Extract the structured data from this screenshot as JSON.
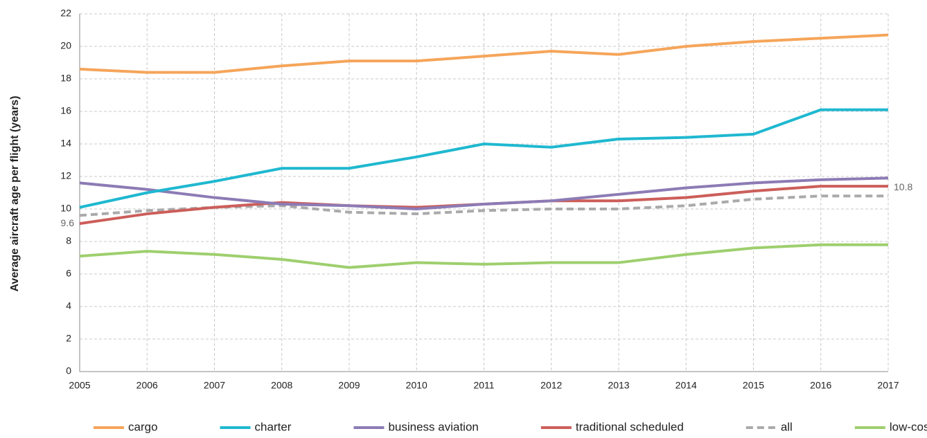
{
  "chart_data": {
    "type": "line",
    "y_label": "Average aircraft age per flight (years)",
    "categories": [
      "2005",
      "2006",
      "2007",
      "2008",
      "2009",
      "2010",
      "2011",
      "2012",
      "2013",
      "2014",
      "2015",
      "2016",
      "2017"
    ],
    "series": [
      {
        "name": "cargo",
        "color": "#f5a55a",
        "values": [
          18.6,
          18.4,
          18.4,
          18.8,
          19.1,
          19.1,
          19.4,
          19.7,
          19.5,
          20.0,
          20.3,
          20.5,
          20.7
        ]
      },
      {
        "name": "charter",
        "color": "#1fb8d0",
        "values": [
          10.1,
          11.0,
          11.7,
          12.5,
          12.5,
          13.2,
          14.0,
          13.8,
          14.3,
          14.4,
          14.6,
          16.1,
          16.1
        ]
      },
      {
        "name": "business aviation",
        "color": "#8c7bb5",
        "values": [
          11.6,
          11.2,
          10.7,
          10.3,
          10.2,
          10.0,
          10.3,
          10.5,
          10.9,
          11.3,
          11.6,
          11.8,
          11.9
        ]
      },
      {
        "name": "traditional scheduled",
        "color": "#cc5e5a",
        "values": [
          9.1,
          9.7,
          10.1,
          10.4,
          10.2,
          10.1,
          10.3,
          10.5,
          10.5,
          10.7,
          11.1,
          11.4,
          11.4
        ]
      },
      {
        "name": "all",
        "color": "#aaaaaa",
        "dashed": true,
        "values": [
          9.6,
          9.9,
          10.1,
          10.2,
          9.8,
          9.7,
          9.9,
          10.0,
          10.0,
          10.2,
          10.6,
          10.8,
          10.8
        ]
      },
      {
        "name": "low-cost",
        "color": "#9ecf6e",
        "values": [
          7.1,
          7.4,
          7.2,
          6.9,
          6.4,
          6.7,
          6.6,
          6.7,
          6.7,
          7.2,
          7.6,
          7.8,
          7.8
        ]
      }
    ],
    "ylim": [
      0,
      22
    ],
    "yticks": [
      0,
      2,
      4,
      6,
      8,
      10,
      12,
      14,
      16,
      18,
      20,
      22
    ],
    "grid": true,
    "legend": "bottom"
  }
}
